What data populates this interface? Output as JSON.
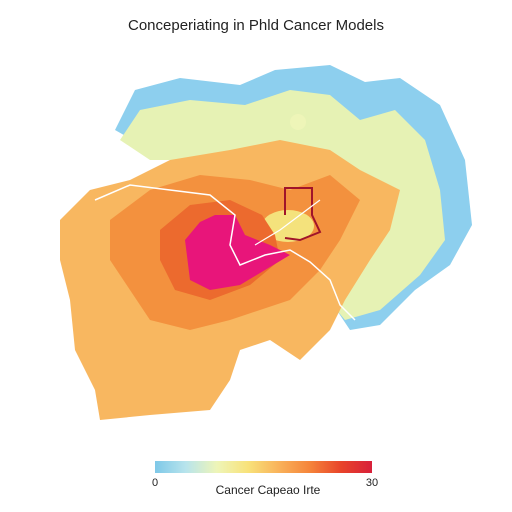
{
  "title": "Conceperiating in Phld Cancer Models",
  "colorbar": {
    "label": "Cancer Capeao Irte",
    "min": 0,
    "max": 30,
    "colors": [
      "#7ec8e8",
      "#b8e4ec",
      "#eef5b8",
      "#f8e27a",
      "#f9b25a",
      "#f5843a",
      "#e8442a",
      "#d8203a"
    ]
  }
}
